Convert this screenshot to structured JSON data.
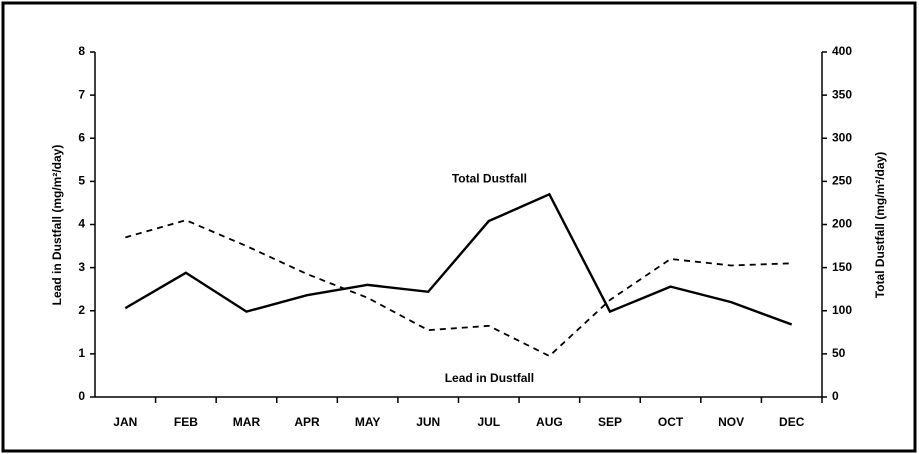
{
  "chart_data": {
    "type": "line",
    "categories": [
      "JAN",
      "FEB",
      "MAR",
      "APR",
      "MAY",
      "JUN",
      "JUL",
      "AUG",
      "SEP",
      "OCT",
      "NOV",
      "DEC"
    ],
    "series": [
      {
        "name": "Lead in Dustfall",
        "color": "#000000",
        "linestyle": "dashed",
        "axis": "y",
        "values": [
          3.7,
          4.1,
          3.5,
          2.85,
          2.3,
          1.55,
          1.65,
          0.95,
          2.25,
          3.2,
          3.05,
          3.1
        ]
      },
      {
        "name": "Total Dustfall",
        "color": "#000000",
        "linestyle": "solid",
        "axis": "y2",
        "values": [
          103,
          144,
          99,
          118,
          130,
          122,
          204,
          235,
          99,
          128,
          110,
          84
        ]
      }
    ],
    "ylabel": "Lead in Dustfall (mg/m²/day)",
    "y2label": "Total Dustfall (mg/m²/day)",
    "ylim": [
      0,
      8
    ],
    "yticks": [
      0,
      1,
      2,
      3,
      4,
      5,
      6,
      7,
      8
    ],
    "y2lim": [
      0,
      400
    ],
    "y2ticks": [
      0,
      50,
      100,
      150,
      200,
      250,
      300,
      350,
      400
    ],
    "grid": false
  }
}
